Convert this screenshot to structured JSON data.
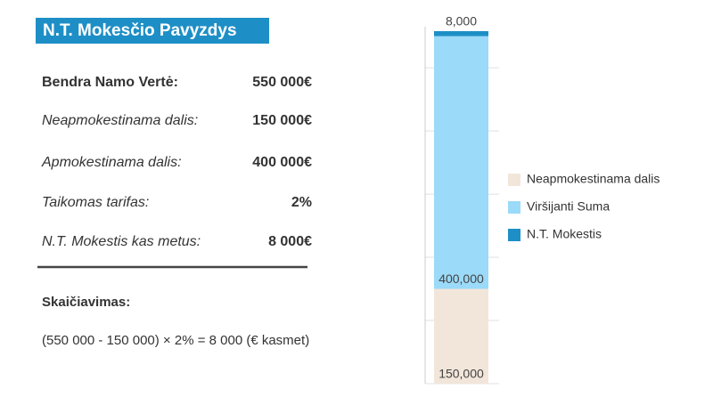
{
  "panel": {
    "title": "N.T. Mokesčio Pavyzdys",
    "rows": [
      [
        "Bendra Namo Vertė:",
        "550 000€"
      ],
      [
        "Neapmokestinama dalis:",
        "150 000€"
      ],
      [
        "Apmokestinama dalis:",
        "400 000€"
      ],
      [
        "Taikomas tarifas:",
        "2%"
      ],
      [
        "N.T. Mokestis kas metus:",
        "8 000€"
      ]
    ],
    "calc_label": "Skaičiavimas:",
    "formula": "(550 000 - 150 000) × 2% = 8 000 (€ kasmet)"
  },
  "chart_data": {
    "type": "bar",
    "stacked": true,
    "categories": [
      null
    ],
    "series": [
      {
        "name": "Neapmokestinama dalis",
        "color": "#f2e6da",
        "values": [
          150000
        ],
        "value_labels": [
          "150,000"
        ]
      },
      {
        "name": "Viršijanti Suma",
        "color": "#9bdaf8",
        "values": [
          400000
        ],
        "value_labels": [
          "400,000"
        ]
      },
      {
        "name": "N.T. Mokestis",
        "color": "#1e8fc6",
        "values": [
          8000
        ],
        "value_labels": [
          "8,000"
        ]
      }
    ],
    "ylim": [
      0,
      565000
    ],
    "yticks": [
      0,
      100000,
      200000,
      300000,
      400000,
      500000
    ],
    "grid": true,
    "legend": "right"
  }
}
